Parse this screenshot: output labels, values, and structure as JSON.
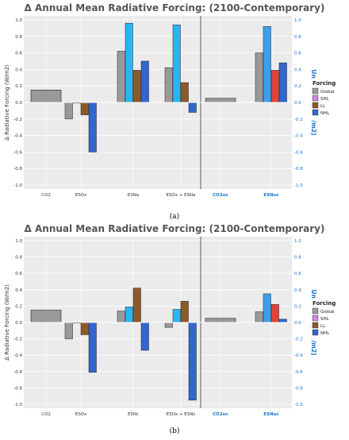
{
  "charts": [
    {
      "title": "Δ Annual Mean Radiative Forcing: (2100-Contemporary)",
      "caption": "(a)"
    },
    {
      "title": "Δ Annual Mean Radiative Forcing: (2100-Contemporary)",
      "caption": "(b)"
    }
  ],
  "legend_title": "Forcing",
  "legend_items": [
    "Global",
    "SHL",
    "LL",
    "NHL"
  ],
  "colors": {
    "Global": "#999999",
    "SHL": "#cc88dd",
    "LL": "#8b5a2b",
    "NHL": "#3366cc"
  },
  "chart_data": [
    {
      "type": "bar",
      "title": "Δ Annual Mean Radiative Forcing: (2100-Contemporary)",
      "ylabel": "Δ Radiative Forcing (W/m2)",
      "ylabel_right": "Uncertainty (W/m2)",
      "ylim": [
        -1.0,
        1.0
      ],
      "categories": [
        "CO2",
        "ESOx",
        "ESNa",
        "ESOx + ESNa",
        "CO2uc",
        "ESNuc"
      ],
      "series": [
        {
          "name": "Global",
          "values": [
            0.15,
            -0.2,
            0.62,
            0.42,
            0.05,
            0.6
          ]
        },
        {
          "name": "SHL",
          "values": [
            null,
            0.0,
            0.96,
            0.94,
            null,
            0.92
          ]
        },
        {
          "name": "LL",
          "values": [
            null,
            -0.15,
            0.39,
            0.24,
            null,
            0.39
          ]
        },
        {
          "name": "NHL",
          "values": [
            null,
            -0.6,
            0.5,
            -0.12,
            null,
            0.48
          ]
        }
      ],
      "yticks": [
        "1.0",
        "0.8",
        "0.6",
        "0.4",
        "0.2",
        "0.0",
        "-0.2",
        "-0.4",
        "-0.6",
        "-0.8",
        "-1.0"
      ]
    },
    {
      "type": "bar",
      "title": "Δ Annual Mean Radiative Forcing: (2100-Contemporary)",
      "ylabel": "Δ Radiative Forcing (W/m2)",
      "ylabel_right": "Uncertainty (W/m2)",
      "ylim": [
        -1.0,
        1.0
      ],
      "categories": [
        "CO2",
        "ESOx",
        "ESNc",
        "ESOx + ESNc",
        "CO2uc",
        "ESNuc"
      ],
      "series": [
        {
          "name": "Global",
          "values": [
            0.15,
            -0.2,
            0.14,
            -0.06,
            0.05,
            0.13
          ]
        },
        {
          "name": "SHL",
          "values": [
            null,
            0.0,
            0.19,
            0.16,
            null,
            0.35
          ]
        },
        {
          "name": "LL",
          "values": [
            null,
            -0.15,
            0.42,
            0.26,
            null,
            0.22
          ]
        },
        {
          "name": "NHL",
          "values": [
            null,
            -0.61,
            -0.34,
            -0.95,
            null,
            0.04
          ]
        }
      ],
      "yticks": [
        "1.0",
        "0.8",
        "0.6",
        "0.4",
        "0.2",
        "0.0",
        "-0.2",
        "-0.4",
        "-0.6",
        "-0.8",
        "-1.0"
      ]
    }
  ]
}
